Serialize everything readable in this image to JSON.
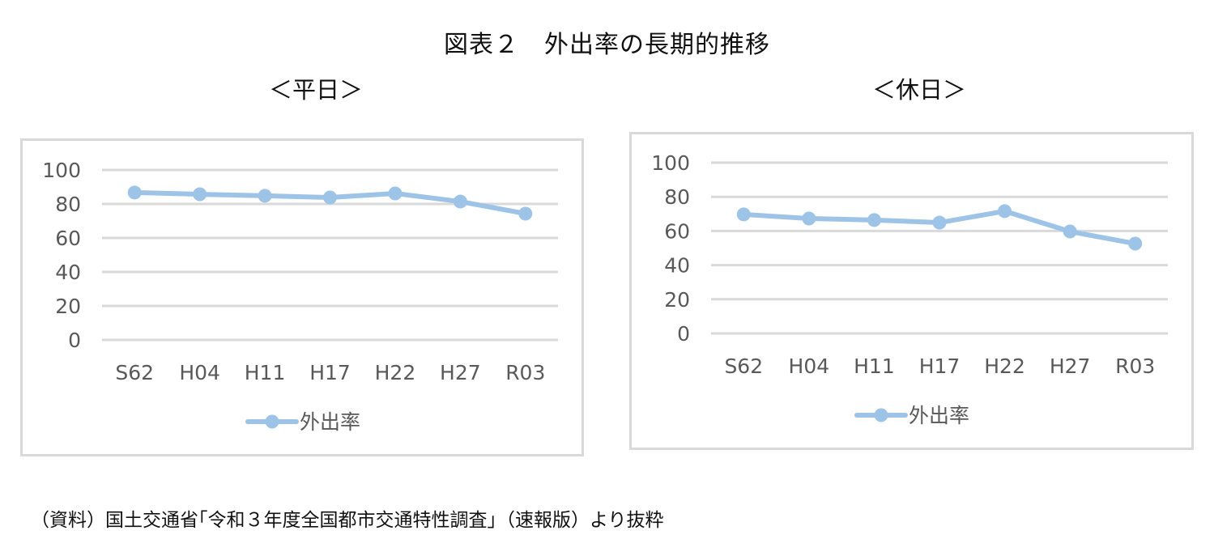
{
  "page": {
    "title": "図表２　外出率の長期的推移",
    "source_note": "（資料）国土交通省｢令和３年度全国都市交通特性調査｣（速報版）より抜粋"
  },
  "colors": {
    "series_line": "#9dc3e6",
    "gridline": "#d9d9d9",
    "tick_text": "#595959",
    "frame_border": "#d9d9d9"
  },
  "chart_data": [
    {
      "type": "line",
      "title": "＜平日＞",
      "categories": [
        "S62",
        "H04",
        "H11",
        "H17",
        "H22",
        "H27",
        "R03"
      ],
      "series": [
        {
          "name": "外出率",
          "values": [
            86.7,
            85.7,
            84.8,
            83.8,
            86.2,
            81.4,
            74.3
          ]
        }
      ],
      "xlabel": "",
      "ylabel": "",
      "ylim": [
        0,
        100
      ],
      "yticks": [
        0,
        20,
        40,
        60,
        80,
        100
      ],
      "grid": true,
      "legend_position": "bottom"
    },
    {
      "type": "line",
      "title": "＜休日＞",
      "categories": [
        "S62",
        "H04",
        "H11",
        "H17",
        "H22",
        "H27",
        "R03"
      ],
      "series": [
        {
          "name": "外出率",
          "values": [
            69.7,
            67.3,
            66.4,
            64.9,
            71.6,
            59.7,
            52.6
          ]
        }
      ],
      "xlabel": "",
      "ylabel": "",
      "ylim": [
        0,
        100
      ],
      "yticks": [
        0,
        20,
        40,
        60,
        80,
        100
      ],
      "grid": true,
      "legend_position": "bottom"
    }
  ]
}
